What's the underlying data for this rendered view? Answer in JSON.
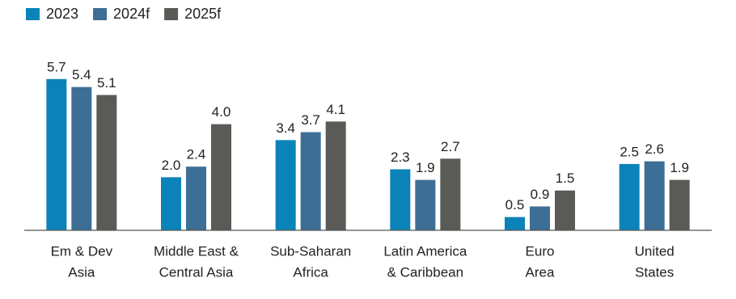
{
  "chart_data": {
    "type": "bar",
    "categories": [
      [
        "Em & Dev",
        "Asia"
      ],
      [
        "Middle East &",
        "Central Asia"
      ],
      [
        "Sub-Saharan",
        "Africa"
      ],
      [
        "Latin America",
        "& Caribbean"
      ],
      [
        "Euro",
        "Area"
      ],
      [
        "United",
        "States"
      ]
    ],
    "series": [
      {
        "name": "2023",
        "color": "#0b83b9",
        "values": [
          5.7,
          2.0,
          3.4,
          2.3,
          0.5,
          2.5
        ],
        "value_labels": [
          "5.7",
          "2.0",
          "3.4",
          "2.3",
          "0.5",
          "2.5"
        ]
      },
      {
        "name": "2024f",
        "color": "#3d6e96",
        "values": [
          5.4,
          2.4,
          3.7,
          1.9,
          0.9,
          2.6
        ],
        "value_labels": [
          "5.4",
          "2.4",
          "3.7",
          "1.9",
          "0.9",
          "2.6"
        ]
      },
      {
        "name": "2025f",
        "color": "#5a5b56",
        "values": [
          5.1,
          4.0,
          4.1,
          2.7,
          1.5,
          1.9
        ],
        "value_labels": [
          "5.1",
          "4.0",
          "4.1",
          "2.7",
          "1.5",
          "1.9"
        ]
      }
    ],
    "ylim": [
      0,
      6
    ],
    "legend": "top-left"
  }
}
